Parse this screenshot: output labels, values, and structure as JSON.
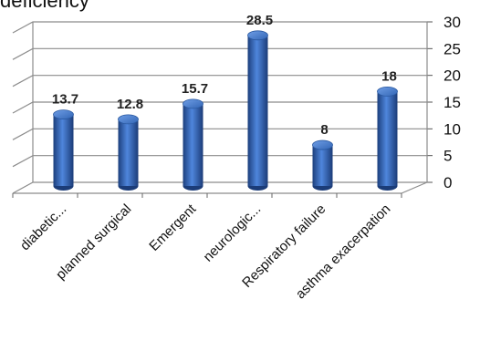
{
  "chart_data": {
    "type": "bar",
    "title": "deficiency",
    "xlabel": "",
    "ylabel": "",
    "categories": [
      "diabetic...",
      "planned surgical",
      "Emergent",
      "neurologic...",
      "Respiratory failure",
      "asthma exacerpation"
    ],
    "values": [
      13.7,
      12.8,
      15.7,
      28.5,
      8,
      18
    ],
    "value_labels": [
      "13.7",
      "12.8",
      "15.7",
      "28.5",
      "8",
      "18"
    ],
    "ylim": [
      0,
      30
    ],
    "yticks": [
      "0",
      "5",
      "10",
      "15",
      "20",
      "25",
      "30"
    ],
    "y_axis_side": "right",
    "grid": true,
    "style": "3d-cylinder",
    "bar_color": "#2f63b3",
    "legend": "none"
  }
}
